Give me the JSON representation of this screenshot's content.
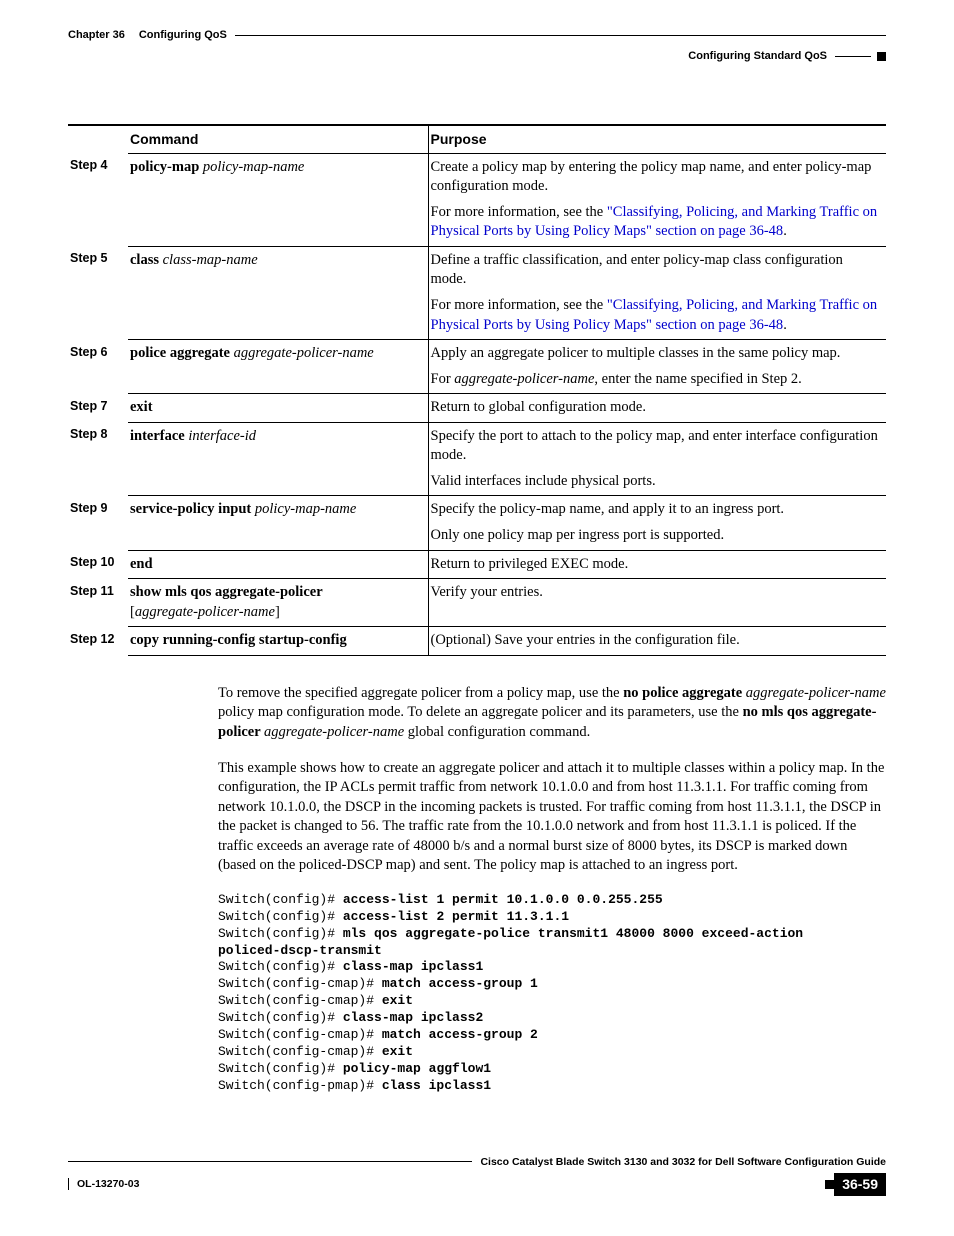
{
  "header": {
    "chapter": "Chapter 36",
    "chapter_title": "Configuring QoS",
    "section": "Configuring Standard QoS"
  },
  "table": {
    "headers": {
      "command": "Command",
      "purpose": "Purpose"
    },
    "rows": [
      {
        "step": "Step 4",
        "cmd_bold": "policy-map ",
        "cmd_ital": "policy-map-name",
        "purpose": [
          {
            "plain": "Create a policy map by entering the policy map name, and enter policy-map configuration mode."
          },
          {
            "pre": "For more information, see the ",
            "link1": "\"Classifying, Policing, and Marking Traffic on Physical Ports by Using Policy Maps\" section on page 36-48",
            "post": "."
          }
        ]
      },
      {
        "step": "Step 5",
        "cmd_bold": "class ",
        "cmd_ital": "class-map-name",
        "purpose": [
          {
            "plain": "Define a traffic classification, and enter policy-map class configuration mode."
          },
          {
            "pre": "For more information, see the ",
            "link1": "\"Classifying, Policing, and Marking Traffic on Physical Ports by Using Policy Maps\" section on page 36-48",
            "post": "."
          }
        ]
      },
      {
        "step": "Step 6",
        "cmd_bold": "police aggregate ",
        "cmd_ital": "aggregate-policer-name",
        "purpose": [
          {
            "plain": "Apply an aggregate policer to multiple classes in the same policy map."
          },
          {
            "pre": "For ",
            "ital": "aggregate-policer-name",
            "post": ", enter the name specified in Step 2."
          }
        ]
      },
      {
        "step": "Step 7",
        "cmd_bold": "exit",
        "cmd_ital": "",
        "purpose": [
          {
            "plain": "Return to global configuration mode."
          }
        ]
      },
      {
        "step": "Step 8",
        "cmd_bold": "interface ",
        "cmd_ital": "interface-id",
        "purpose": [
          {
            "plain": "Specify the port to attach to the policy map, and enter interface configuration mode."
          },
          {
            "plain": "Valid interfaces include physical ports."
          }
        ]
      },
      {
        "step": "Step 9",
        "cmd_bold": "service-policy input ",
        "cmd_ital": "policy-map-name",
        "purpose": [
          {
            "plain": "Specify the policy-map name, and apply it to an ingress port."
          },
          {
            "plain": "Only one policy map per ingress port is supported."
          }
        ]
      },
      {
        "step": "Step 10",
        "cmd_bold": "end",
        "cmd_ital": "",
        "purpose": [
          {
            "plain": "Return to privileged EXEC mode."
          }
        ]
      },
      {
        "step": "Step 11",
        "cmd_bold": "show mls qos aggregate-policer",
        "cmd_ital": "",
        "cmd_line2_pre": "[",
        "cmd_line2_ital": "aggregate-policer-name",
        "cmd_line2_post": "]",
        "purpose": [
          {
            "plain": "Verify your entries."
          }
        ]
      },
      {
        "step": "Step 12",
        "cmd_bold": "copy running-config startup-config",
        "cmd_ital": "",
        "purpose": [
          {
            "plain": "(Optional) Save your entries in the configuration file."
          }
        ]
      }
    ]
  },
  "body": {
    "p1_pre": "To remove the specified aggregate policer from a policy map, use the ",
    "p1_b1": "no police aggregate ",
    "p1_i1": "aggregate-policer-name",
    "p1_mid": " policy map configuration mode. To delete an aggregate policer and its parameters, use the ",
    "p1_b2": "no mls qos aggregate-policer ",
    "p1_i2": "aggregate-policer-name",
    "p1_post": " global configuration command.",
    "p2": "This example shows how to create an aggregate policer and attach it to multiple classes within a policy map. In the configuration, the IP ACLs permit traffic from network 10.1.0.0 and from host 11.3.1.1. For traffic coming from network 10.1.0.0, the DSCP in the incoming packets is trusted. For traffic coming from host 11.3.1.1, the DSCP in the packet is changed to 56. The traffic rate from the 10.1.0.0 network and from host 11.3.1.1 is policed. If the traffic exceeds an average rate of 48000 b/s and a normal burst size of 8000 bytes, its DSCP is marked down (based on the policed-DSCP map) and sent. The policy map is attached to an ingress port.",
    "cli": [
      {
        "prompt": "Switch(config)# ",
        "cmd": "access-list 1 permit 10.1.0.0 0.0.255.255"
      },
      {
        "prompt": "Switch(config)# ",
        "cmd": "access-list 2 permit 11.3.1.1"
      },
      {
        "prompt": "Switch(config)# ",
        "cmd": "mls qos aggregate-police transmit1 48000 8000 exceed-action"
      },
      {
        "prompt": "",
        "cmd": "policed-dscp-transmit"
      },
      {
        "prompt": "Switch(config)# ",
        "cmd": "class-map ipclass1"
      },
      {
        "prompt": "Switch(config-cmap)# ",
        "cmd": "match access-group 1"
      },
      {
        "prompt": "Switch(config-cmap)# ",
        "cmd": "exit"
      },
      {
        "prompt": "Switch(config)# ",
        "cmd": "class-map ipclass2"
      },
      {
        "prompt": "Switch(config-cmap)# ",
        "cmd": "match access-group 2"
      },
      {
        "prompt": "Switch(config-cmap)# ",
        "cmd": "exit"
      },
      {
        "prompt": "Switch(config)# ",
        "cmd": "policy-map aggflow1"
      },
      {
        "prompt": "Switch(config-pmap)# ",
        "cmd": "class ipclass1"
      }
    ]
  },
  "footer": {
    "guide": "Cisco Catalyst Blade Switch 3130 and 3032 for Dell Software Configuration Guide",
    "docid": "OL-13270-03",
    "page": "36-59"
  }
}
